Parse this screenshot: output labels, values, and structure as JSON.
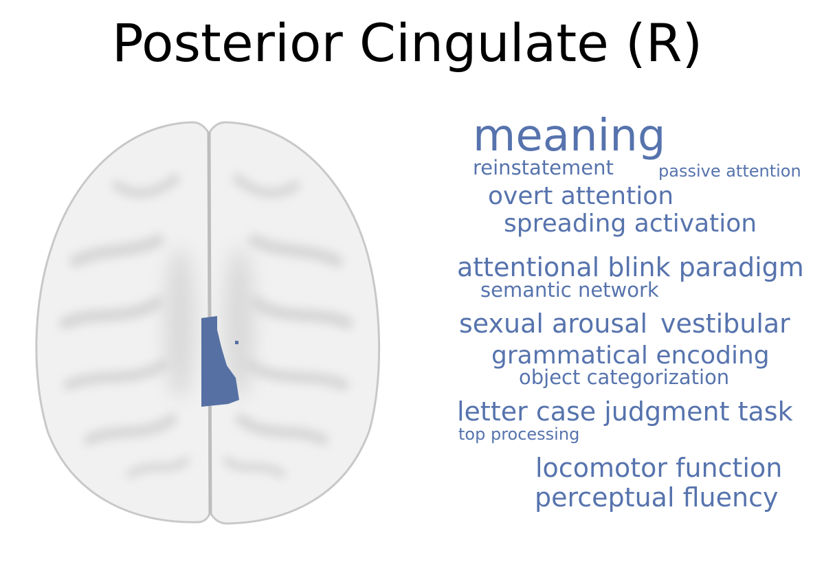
{
  "title": "Posterior Cingulate (R)",
  "colors": {
    "term": "#5673ad",
    "region": "#5670a3",
    "brain_fill": "#f1f1f1",
    "brain_outline": "#c8c8c8"
  },
  "brain": {
    "view": "axial",
    "highlighted_region": "right posterior cingulate"
  },
  "terms": [
    {
      "text": "meaning",
      "weight": 1.0
    },
    {
      "text": "reinstatement",
      "weight": 0.45
    },
    {
      "text": "passive attention",
      "weight": 0.35
    },
    {
      "text": "overt attention",
      "weight": 0.58
    },
    {
      "text": "spreading activation",
      "weight": 0.58
    },
    {
      "text": "attentional blink paradigm",
      "weight": 0.6
    },
    {
      "text": "semantic network",
      "weight": 0.45
    },
    {
      "text": "sexual arousal",
      "weight": 0.6
    },
    {
      "text": "vestibular",
      "weight": 0.6
    },
    {
      "text": "grammatical encoding",
      "weight": 0.58
    },
    {
      "text": "object categorization",
      "weight": 0.45
    },
    {
      "text": "letter case judgment task",
      "weight": 0.6
    },
    {
      "text": "top processing",
      "weight": 0.38
    },
    {
      "text": "locomotor function",
      "weight": 0.58
    },
    {
      "text": "perceptual fluency",
      "weight": 0.58
    }
  ]
}
